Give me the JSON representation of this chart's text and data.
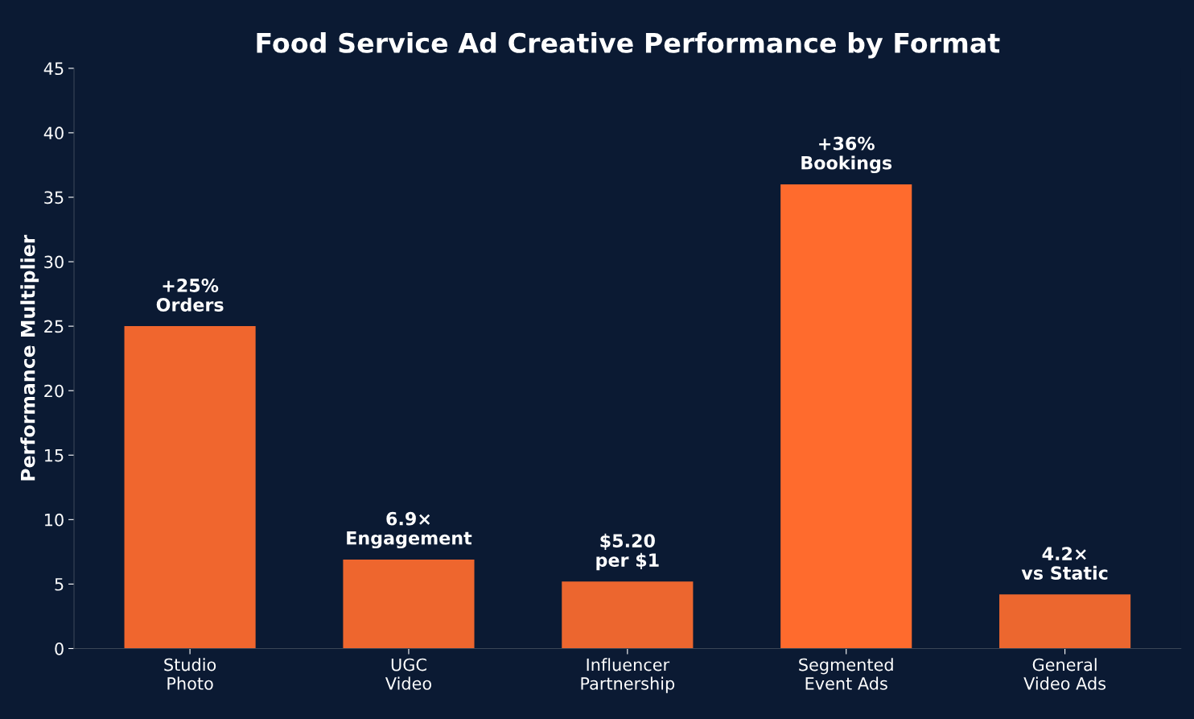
{
  "chart_data": {
    "type": "bar",
    "title": "Food Service Ad Creative Performance by Format",
    "ylabel": "Performance Multiplier",
    "categories": [
      "Studio\nPhoto",
      "UGC\nVideo",
      "Influencer\nPartnership",
      "Segmented\nEvent Ads",
      "General\nVideo Ads"
    ],
    "values": [
      25,
      6.9,
      5.2,
      36,
      4.2
    ],
    "colors": [
      "#f0662e",
      "#ee662e",
      "#ec662f",
      "#ff6b2d",
      "#ec672f"
    ],
    "value_labels": [
      "+25%\nOrders",
      "6.9×\nEngagement",
      "$5.20\nper $1",
      "+36%\nBookings",
      "4.2×\nvs Static"
    ],
    "ylim": [
      0,
      45
    ],
    "yticks": [
      0,
      5,
      10,
      15,
      20,
      25,
      30,
      35,
      40,
      45
    ],
    "grid": false,
    "legend": false
  }
}
